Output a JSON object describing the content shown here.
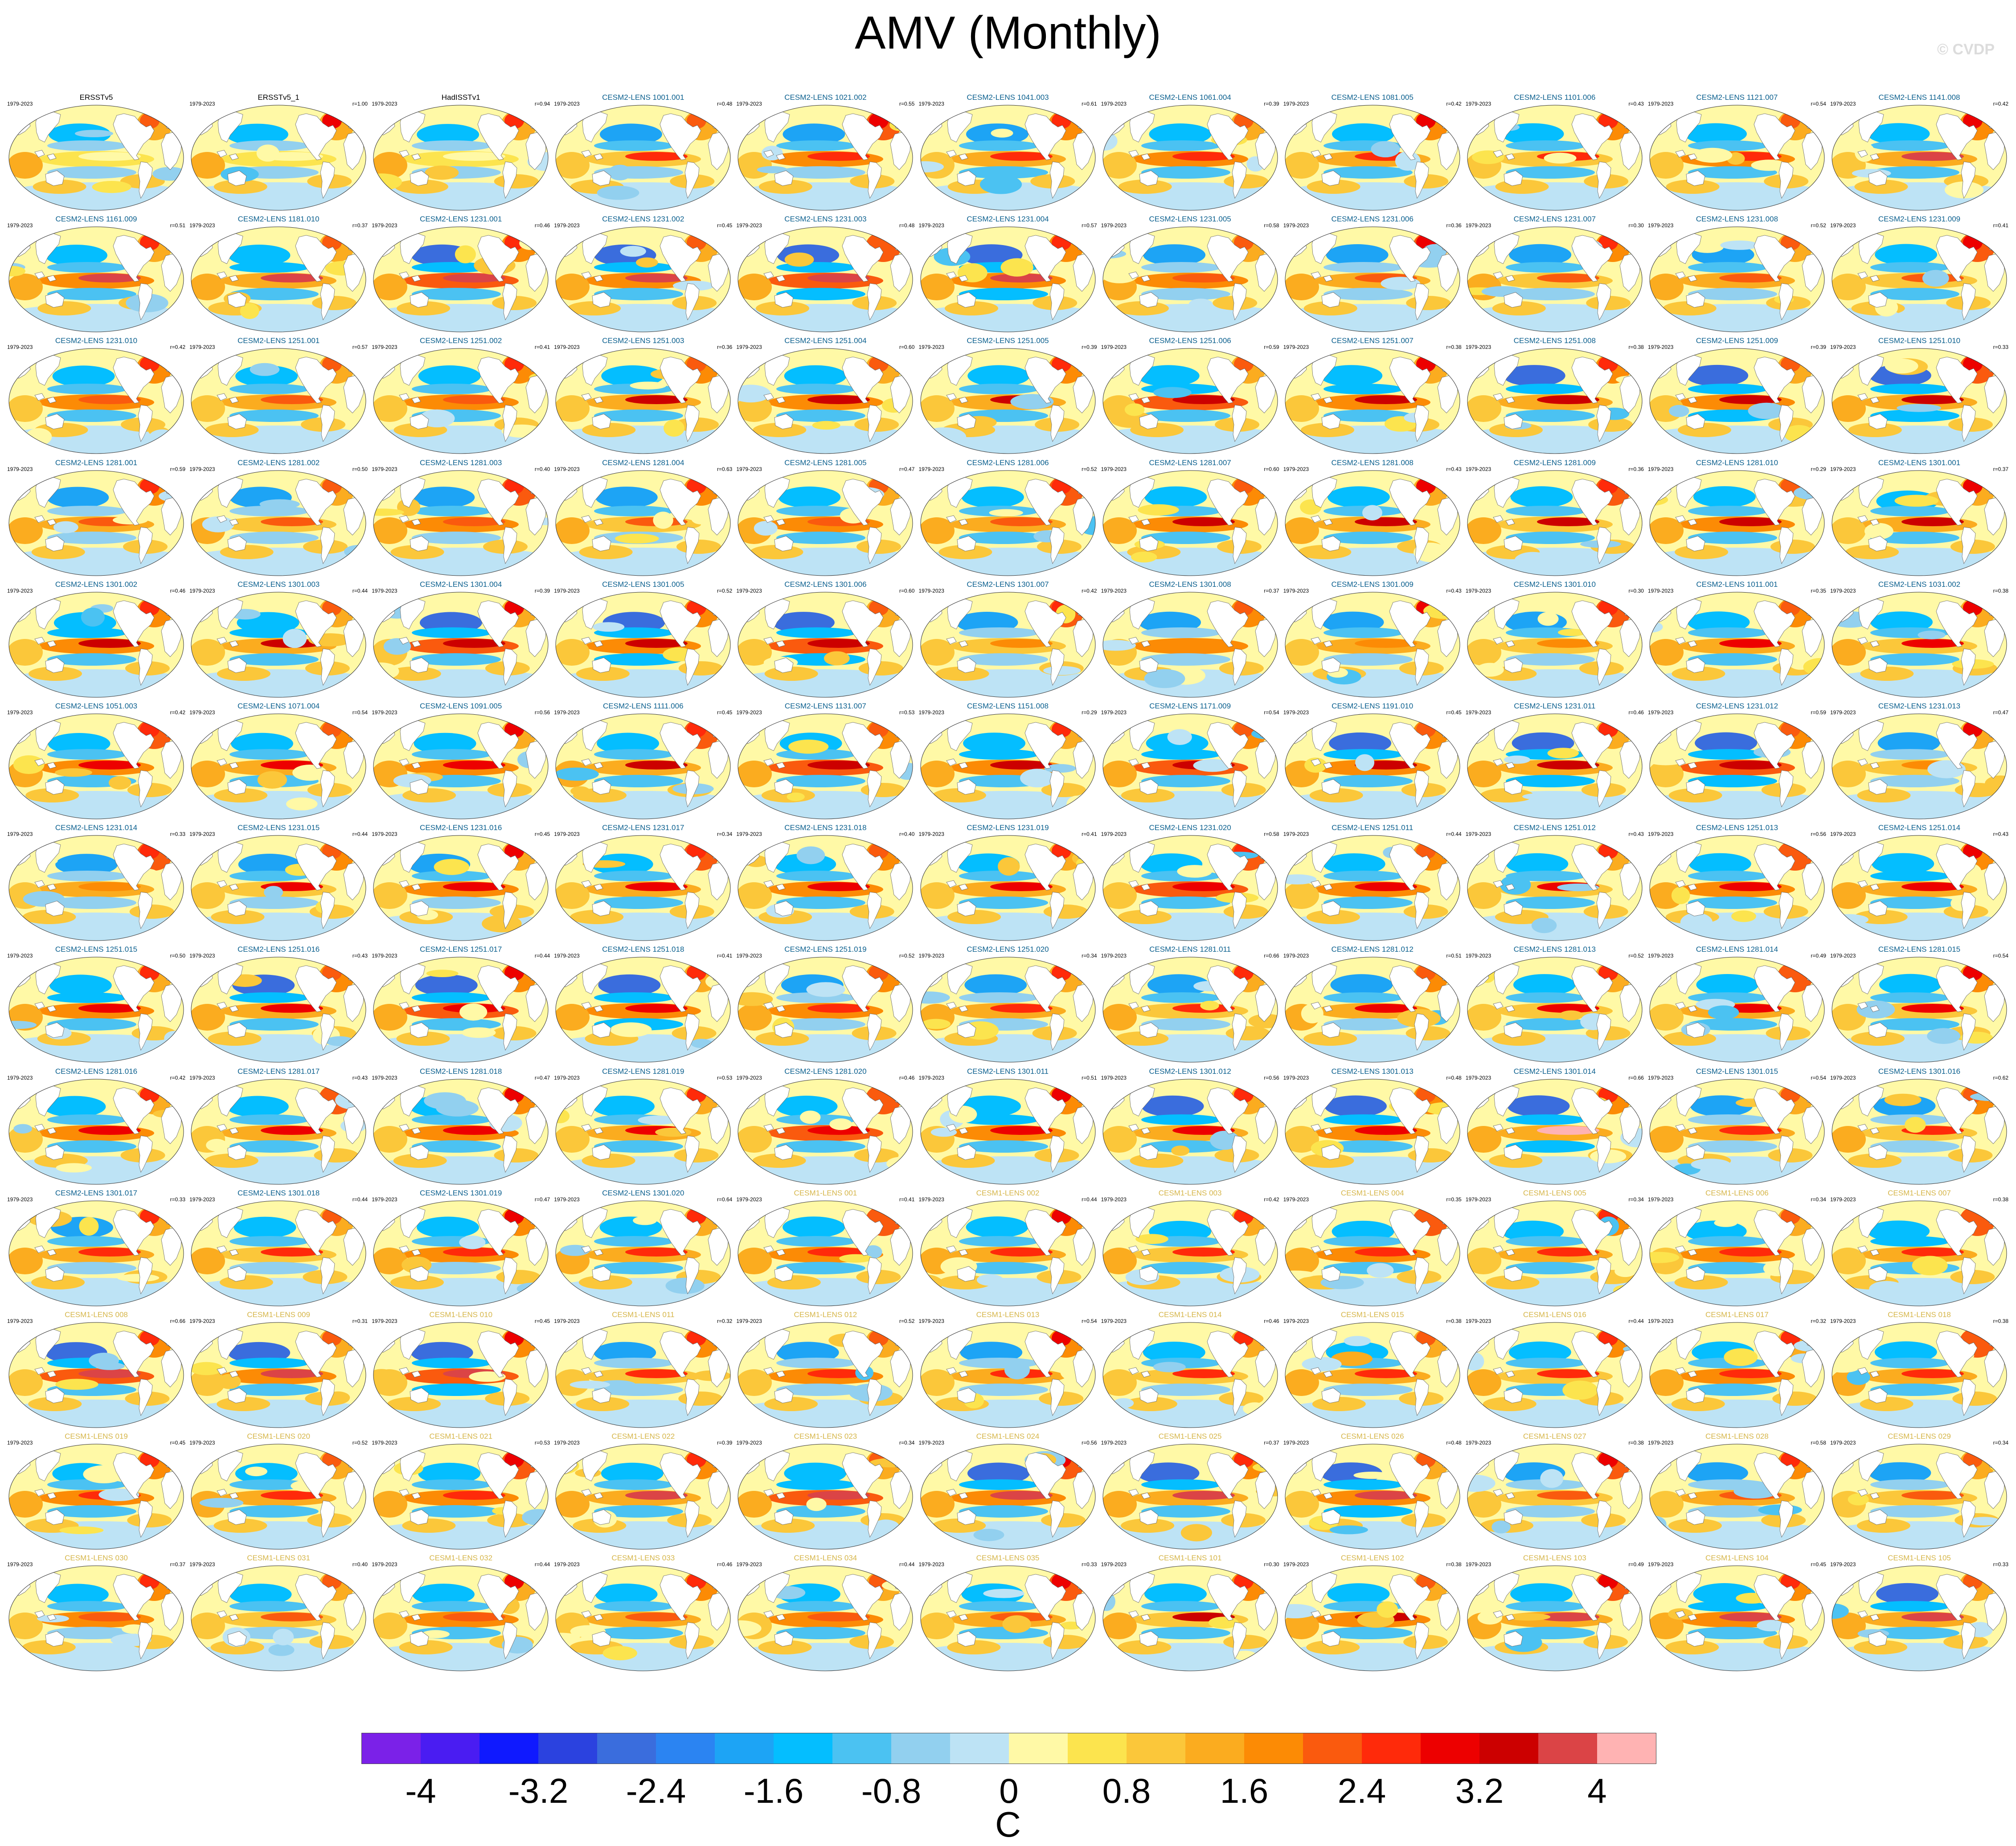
{
  "title": "AMV (Monthly)",
  "watermark": "© CVDP",
  "period": "1979-2023",
  "units": "C",
  "colorbar": {
    "colors": [
      "#7b21e8",
      "#4a1cf2",
      "#0f19ff",
      "#2b42df",
      "#3a6ddd",
      "#2b84f2",
      "#1da4f5",
      "#04beff",
      "#4bc2f2",
      "#92d0ef",
      "#bde3f5",
      "#fff9a6",
      "#fce44e",
      "#fbc73a",
      "#fbac1f",
      "#fc8b05",
      "#fa5a0e",
      "#ff2a0a",
      "#ed0000",
      "#cc0000",
      "#db4446",
      "#ffb3b3"
    ],
    "ticks": [
      "-4",
      "-3.2",
      "-2.4",
      "-1.6",
      "-0.8",
      "0",
      "0.8",
      "1.6",
      "2.4",
      "3.2",
      "4"
    ],
    "levels": [
      -4,
      -3.6,
      -3.2,
      -2.8,
      -2.4,
      -2,
      -1.6,
      -1.2,
      -0.8,
      -0.4,
      0,
      0.4,
      0.8,
      1.2,
      1.6,
      2,
      2.4,
      2.8,
      3.2,
      3.6,
      4
    ]
  },
  "panels": [
    {
      "name": "ERSSTv5",
      "r": "",
      "group": "obs"
    },
    {
      "name": "ERSSTv5_1",
      "r": "r=1.00",
      "group": "obs"
    },
    {
      "name": "HadISSTv1",
      "r": "r=0.94",
      "group": "obs"
    },
    {
      "name": "CESM2-LENS 1001.001",
      "r": "r=0.48",
      "group": "c2"
    },
    {
      "name": "CESM2-LENS 1021.002",
      "r": "r=0.55",
      "group": "c2"
    },
    {
      "name": "CESM2-LENS 1041.003",
      "r": "r=0.61",
      "group": "c2"
    },
    {
      "name": "CESM2-LENS 1061.004",
      "r": "r=0.39",
      "group": "c2"
    },
    {
      "name": "CESM2-LENS 1081.005",
      "r": "r=0.42",
      "group": "c2"
    },
    {
      "name": "CESM2-LENS 1101.006",
      "r": "r=0.43",
      "group": "c2"
    },
    {
      "name": "CESM2-LENS 1121.007",
      "r": "r=0.54",
      "group": "c2"
    },
    {
      "name": "CESM2-LENS 1141.008",
      "r": "r=0.42",
      "group": "c2"
    },
    {
      "name": "CESM2-LENS 1161.009",
      "r": "r=0.51",
      "group": "c2"
    },
    {
      "name": "CESM2-LENS 1181.010",
      "r": "r=0.37",
      "group": "c2"
    },
    {
      "name": "CESM2-LENS 1231.001",
      "r": "r=0.46",
      "group": "c2"
    },
    {
      "name": "CESM2-LENS 1231.002",
      "r": "r=0.45",
      "group": "c2"
    },
    {
      "name": "CESM2-LENS 1231.003",
      "r": "r=0.48",
      "group": "c2"
    },
    {
      "name": "CESM2-LENS 1231.004",
      "r": "r=0.57",
      "group": "c2"
    },
    {
      "name": "CESM2-LENS 1231.005",
      "r": "r=0.58",
      "group": "c2"
    },
    {
      "name": "CESM2-LENS 1231.006",
      "r": "r=0.36",
      "group": "c2"
    },
    {
      "name": "CESM2-LENS 1231.007",
      "r": "r=0.30",
      "group": "c2"
    },
    {
      "name": "CESM2-LENS 1231.008",
      "r": "r=0.52",
      "group": "c2"
    },
    {
      "name": "CESM2-LENS 1231.009",
      "r": "r=0.41",
      "group": "c2"
    },
    {
      "name": "CESM2-LENS 1231.010",
      "r": "r=0.42",
      "group": "c2"
    },
    {
      "name": "CESM2-LENS 1251.001",
      "r": "r=0.57",
      "group": "c2"
    },
    {
      "name": "CESM2-LENS 1251.002",
      "r": "r=0.41",
      "group": "c2"
    },
    {
      "name": "CESM2-LENS 1251.003",
      "r": "r=0.36",
      "group": "c2"
    },
    {
      "name": "CESM2-LENS 1251.004",
      "r": "r=0.60",
      "group": "c2"
    },
    {
      "name": "CESM2-LENS 1251.005",
      "r": "r=0.39",
      "group": "c2"
    },
    {
      "name": "CESM2-LENS 1251.006",
      "r": "r=0.59",
      "group": "c2"
    },
    {
      "name": "CESM2-LENS 1251.007",
      "r": "r=0.38",
      "group": "c2"
    },
    {
      "name": "CESM2-LENS 1251.008",
      "r": "r=0.38",
      "group": "c2"
    },
    {
      "name": "CESM2-LENS 1251.009",
      "r": "r=0.39",
      "group": "c2"
    },
    {
      "name": "CESM2-LENS 1251.010",
      "r": "r=0.33",
      "group": "c2"
    },
    {
      "name": "CESM2-LENS 1281.001",
      "r": "r=0.59",
      "group": "c2"
    },
    {
      "name": "CESM2-LENS 1281.002",
      "r": "r=0.50",
      "group": "c2"
    },
    {
      "name": "CESM2-LENS 1281.003",
      "r": "r=0.40",
      "group": "c2"
    },
    {
      "name": "CESM2-LENS 1281.004",
      "r": "r=0.63",
      "group": "c2"
    },
    {
      "name": "CESM2-LENS 1281.005",
      "r": "r=0.47",
      "group": "c2"
    },
    {
      "name": "CESM2-LENS 1281.006",
      "r": "r=0.52",
      "group": "c2"
    },
    {
      "name": "CESM2-LENS 1281.007",
      "r": "r=0.60",
      "group": "c2"
    },
    {
      "name": "CESM2-LENS 1281.008",
      "r": "r=0.43",
      "group": "c2"
    },
    {
      "name": "CESM2-LENS 1281.009",
      "r": "r=0.36",
      "group": "c2"
    },
    {
      "name": "CESM2-LENS 1281.010",
      "r": "r=0.29",
      "group": "c2"
    },
    {
      "name": "CESM2-LENS 1301.001",
      "r": "r=0.37",
      "group": "c2"
    },
    {
      "name": "CESM2-LENS 1301.002",
      "r": "r=0.46",
      "group": "c2"
    },
    {
      "name": "CESM2-LENS 1301.003",
      "r": "r=0.44",
      "group": "c2"
    },
    {
      "name": "CESM2-LENS 1301.004",
      "r": "r=0.39",
      "group": "c2"
    },
    {
      "name": "CESM2-LENS 1301.005",
      "r": "r=0.52",
      "group": "c2"
    },
    {
      "name": "CESM2-LENS 1301.006",
      "r": "r=0.60",
      "group": "c2"
    },
    {
      "name": "CESM2-LENS 1301.007",
      "r": "r=0.42",
      "group": "c2"
    },
    {
      "name": "CESM2-LENS 1301.008",
      "r": "r=0.37",
      "group": "c2"
    },
    {
      "name": "CESM2-LENS 1301.009",
      "r": "r=0.43",
      "group": "c2"
    },
    {
      "name": "CESM2-LENS 1301.010",
      "r": "r=0.30",
      "group": "c2"
    },
    {
      "name": "CESM2-LENS 1011.001",
      "r": "r=0.35",
      "group": "c2"
    },
    {
      "name": "CESM2-LENS 1031.002",
      "r": "r=0.38",
      "group": "c2"
    },
    {
      "name": "CESM2-LENS 1051.003",
      "r": "r=0.42",
      "group": "c2"
    },
    {
      "name": "CESM2-LENS 1071.004",
      "r": "r=0.54",
      "group": "c2"
    },
    {
      "name": "CESM2-LENS 1091.005",
      "r": "r=0.56",
      "group": "c2"
    },
    {
      "name": "CESM2-LENS 1111.006",
      "r": "r=0.45",
      "group": "c2"
    },
    {
      "name": "CESM2-LENS 1131.007",
      "r": "r=0.53",
      "group": "c2"
    },
    {
      "name": "CESM2-LENS 1151.008",
      "r": "r=0.29",
      "group": "c2"
    },
    {
      "name": "CESM2-LENS 1171.009",
      "r": "r=0.54",
      "group": "c2"
    },
    {
      "name": "CESM2-LENS 1191.010",
      "r": "r=0.45",
      "group": "c2"
    },
    {
      "name": "CESM2-LENS 1231.011",
      "r": "r=0.46",
      "group": "c2"
    },
    {
      "name": "CESM2-LENS 1231.012",
      "r": "r=0.59",
      "group": "c2"
    },
    {
      "name": "CESM2-LENS 1231.013",
      "r": "r=0.47",
      "group": "c2"
    },
    {
      "name": "CESM2-LENS 1231.014",
      "r": "r=0.33",
      "group": "c2"
    },
    {
      "name": "CESM2-LENS 1231.015",
      "r": "r=0.44",
      "group": "c2"
    },
    {
      "name": "CESM2-LENS 1231.016",
      "r": "r=0.45",
      "group": "c2"
    },
    {
      "name": "CESM2-LENS 1231.017",
      "r": "r=0.34",
      "group": "c2"
    },
    {
      "name": "CESM2-LENS 1231.018",
      "r": "r=0.40",
      "group": "c2"
    },
    {
      "name": "CESM2-LENS 1231.019",
      "r": "r=0.41",
      "group": "c2"
    },
    {
      "name": "CESM2-LENS 1231.020",
      "r": "r=0.58",
      "group": "c2"
    },
    {
      "name": "CESM2-LENS 1251.011",
      "r": "r=0.44",
      "group": "c2"
    },
    {
      "name": "CESM2-LENS 1251.012",
      "r": "r=0.43",
      "group": "c2"
    },
    {
      "name": "CESM2-LENS 1251.013",
      "r": "r=0.56",
      "group": "c2"
    },
    {
      "name": "CESM2-LENS 1251.014",
      "r": "r=0.43",
      "group": "c2"
    },
    {
      "name": "CESM2-LENS 1251.015",
      "r": "r=0.50",
      "group": "c2"
    },
    {
      "name": "CESM2-LENS 1251.016",
      "r": "r=0.43",
      "group": "c2"
    },
    {
      "name": "CESM2-LENS 1251.017",
      "r": "r=0.44",
      "group": "c2"
    },
    {
      "name": "CESM2-LENS 1251.018",
      "r": "r=0.41",
      "group": "c2"
    },
    {
      "name": "CESM2-LENS 1251.019",
      "r": "r=0.52",
      "group": "c2"
    },
    {
      "name": "CESM2-LENS 1251.020",
      "r": "r=0.34",
      "group": "c2"
    },
    {
      "name": "CESM2-LENS 1281.011",
      "r": "r=0.66",
      "group": "c2"
    },
    {
      "name": "CESM2-LENS 1281.012",
      "r": "r=0.51",
      "group": "c2"
    },
    {
      "name": "CESM2-LENS 1281.013",
      "r": "r=0.52",
      "group": "c2"
    },
    {
      "name": "CESM2-LENS 1281.014",
      "r": "r=0.49",
      "group": "c2"
    },
    {
      "name": "CESM2-LENS 1281.015",
      "r": "r=0.54",
      "group": "c2"
    },
    {
      "name": "CESM2-LENS 1281.016",
      "r": "r=0.42",
      "group": "c2"
    },
    {
      "name": "CESM2-LENS 1281.017",
      "r": "r=0.43",
      "group": "c2"
    },
    {
      "name": "CESM2-LENS 1281.018",
      "r": "r=0.47",
      "group": "c2"
    },
    {
      "name": "CESM2-LENS 1281.019",
      "r": "r=0.53",
      "group": "c2"
    },
    {
      "name": "CESM2-LENS 1281.020",
      "r": "r=0.46",
      "group": "c2"
    },
    {
      "name": "CESM2-LENS 1301.011",
      "r": "r=0.51",
      "group": "c2"
    },
    {
      "name": "CESM2-LENS 1301.012",
      "r": "r=0.56",
      "group": "c2"
    },
    {
      "name": "CESM2-LENS 1301.013",
      "r": "r=0.48",
      "group": "c2"
    },
    {
      "name": "CESM2-LENS 1301.014",
      "r": "r=0.66",
      "group": "c2"
    },
    {
      "name": "CESM2-LENS 1301.015",
      "r": "r=0.54",
      "group": "c2"
    },
    {
      "name": "CESM2-LENS 1301.016",
      "r": "r=0.62",
      "group": "c2"
    },
    {
      "name": "CESM2-LENS 1301.017",
      "r": "r=0.33",
      "group": "c2"
    },
    {
      "name": "CESM2-LENS 1301.018",
      "r": "r=0.44",
      "group": "c2"
    },
    {
      "name": "CESM2-LENS 1301.019",
      "r": "r=0.47",
      "group": "c2"
    },
    {
      "name": "CESM2-LENS 1301.020",
      "r": "r=0.64",
      "group": "c2"
    },
    {
      "name": "CESM1-LENS 001",
      "r": "r=0.41",
      "group": "c1"
    },
    {
      "name": "CESM1-LENS 002",
      "r": "r=0.44",
      "group": "c1"
    },
    {
      "name": "CESM1-LENS 003",
      "r": "r=0.42",
      "group": "c1"
    },
    {
      "name": "CESM1-LENS 004",
      "r": "r=0.35",
      "group": "c1"
    },
    {
      "name": "CESM1-LENS 005",
      "r": "r=0.34",
      "group": "c1"
    },
    {
      "name": "CESM1-LENS 006",
      "r": "r=0.34",
      "group": "c1"
    },
    {
      "name": "CESM1-LENS 007",
      "r": "r=0.38",
      "group": "c1"
    },
    {
      "name": "CESM1-LENS 008",
      "r": "r=0.66",
      "group": "c1"
    },
    {
      "name": "CESM1-LENS 009",
      "r": "r=0.31",
      "group": "c1"
    },
    {
      "name": "CESM1-LENS 010",
      "r": "r=0.45",
      "group": "c1"
    },
    {
      "name": "CESM1-LENS 011",
      "r": "r=0.32",
      "group": "c1"
    },
    {
      "name": "CESM1-LENS 012",
      "r": "r=0.52",
      "group": "c1"
    },
    {
      "name": "CESM1-LENS 013",
      "r": "r=0.54",
      "group": "c1"
    },
    {
      "name": "CESM1-LENS 014",
      "r": "r=0.46",
      "group": "c1"
    },
    {
      "name": "CESM1-LENS 015",
      "r": "r=0.38",
      "group": "c1"
    },
    {
      "name": "CESM1-LENS 016",
      "r": "r=0.44",
      "group": "c1"
    },
    {
      "name": "CESM1-LENS 017",
      "r": "r=0.32",
      "group": "c1"
    },
    {
      "name": "CESM1-LENS 018",
      "r": "r=0.38",
      "group": "c1"
    },
    {
      "name": "CESM1-LENS 019",
      "r": "r=0.45",
      "group": "c1"
    },
    {
      "name": "CESM1-LENS 020",
      "r": "r=0.52",
      "group": "c1"
    },
    {
      "name": "CESM1-LENS 021",
      "r": "r=0.53",
      "group": "c1"
    },
    {
      "name": "CESM1-LENS 022",
      "r": "r=0.39",
      "group": "c1"
    },
    {
      "name": "CESM1-LENS 023",
      "r": "r=0.34",
      "group": "c1"
    },
    {
      "name": "CESM1-LENS 024",
      "r": "r=0.56",
      "group": "c1"
    },
    {
      "name": "CESM1-LENS 025",
      "r": "r=0.37",
      "group": "c1"
    },
    {
      "name": "CESM1-LENS 026",
      "r": "r=0.48",
      "group": "c1"
    },
    {
      "name": "CESM1-LENS 027",
      "r": "r=0.38",
      "group": "c1"
    },
    {
      "name": "CESM1-LENS 028",
      "r": "r=0.58",
      "group": "c1"
    },
    {
      "name": "CESM1-LENS 029",
      "r": "r=0.34",
      "group": "c1"
    },
    {
      "name": "CESM1-LENS 030",
      "r": "r=0.37",
      "group": "c1"
    },
    {
      "name": "CESM1-LENS 031",
      "r": "r=0.40",
      "group": "c1"
    },
    {
      "name": "CESM1-LENS 032",
      "r": "r=0.44",
      "group": "c1"
    },
    {
      "name": "CESM1-LENS 033",
      "r": "r=0.46",
      "group": "c1"
    },
    {
      "name": "CESM1-LENS 034",
      "r": "r=0.44",
      "group": "c1"
    },
    {
      "name": "CESM1-LENS 035",
      "r": "r=0.33",
      "group": "c1"
    },
    {
      "name": "CESM1-LENS 101",
      "r": "r=0.30",
      "group": "c1"
    },
    {
      "name": "CESM1-LENS 102",
      "r": "r=0.38",
      "group": "c1"
    },
    {
      "name": "CESM1-LENS 103",
      "r": "r=0.49",
      "group": "c1"
    },
    {
      "name": "CESM1-LENS 104",
      "r": "r=0.45",
      "group": "c1"
    },
    {
      "name": "CESM1-LENS 105",
      "r": "r=0.33",
      "group": "c1"
    }
  ]
}
